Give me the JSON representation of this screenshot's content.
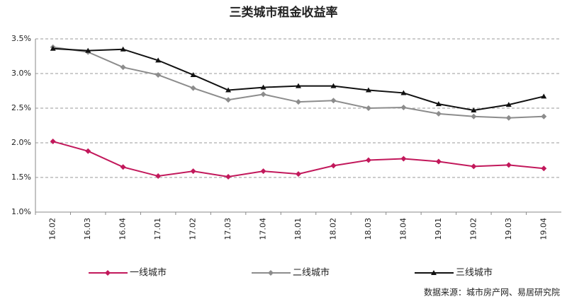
{
  "chart_data": {
    "type": "line",
    "title": "三类城市租金收益率",
    "categories": [
      "16.02",
      "16.03",
      "16.04",
      "17.01",
      "17.02",
      "17.03",
      "17.04",
      "18.01",
      "18.02",
      "18.03",
      "18.04",
      "19.01",
      "19.02",
      "19.03",
      "19.04"
    ],
    "series": [
      {
        "name": "一线城市",
        "color": "#c2185b",
        "marker": "diamond",
        "values": [
          2.02,
          1.88,
          1.65,
          1.52,
          1.59,
          1.51,
          1.59,
          1.55,
          1.67,
          1.75,
          1.77,
          1.73,
          1.66,
          1.68,
          1.63
        ]
      },
      {
        "name": "二线城市",
        "color": "#8c8c8c",
        "marker": "diamond",
        "values": [
          3.38,
          3.31,
          3.09,
          2.98,
          2.79,
          2.62,
          2.7,
          2.59,
          2.61,
          2.5,
          2.51,
          2.42,
          2.38,
          2.36,
          2.38
        ]
      },
      {
        "name": "三线城市",
        "color": "#111111",
        "marker": "triangle",
        "values": [
          3.36,
          3.33,
          3.35,
          3.19,
          2.98,
          2.76,
          2.8,
          2.82,
          2.82,
          2.76,
          2.72,
          2.56,
          2.47,
          2.55,
          2.67
        ]
      }
    ],
    "ylim": [
      1.0,
      3.5
    ],
    "yticks": [
      {
        "value": 1.0,
        "label": "1.0%"
      },
      {
        "value": 1.5,
        "label": "1.5%"
      },
      {
        "value": 2.0,
        "label": "2.0%"
      },
      {
        "value": 2.5,
        "label": "2.5%"
      },
      {
        "value": 3.0,
        "label": "3.0%"
      },
      {
        "value": 3.5,
        "label": "3.5%"
      }
    ],
    "grid": true,
    "legend": "bottom",
    "source": "数据来源：城市房产网、易居研究院"
  }
}
